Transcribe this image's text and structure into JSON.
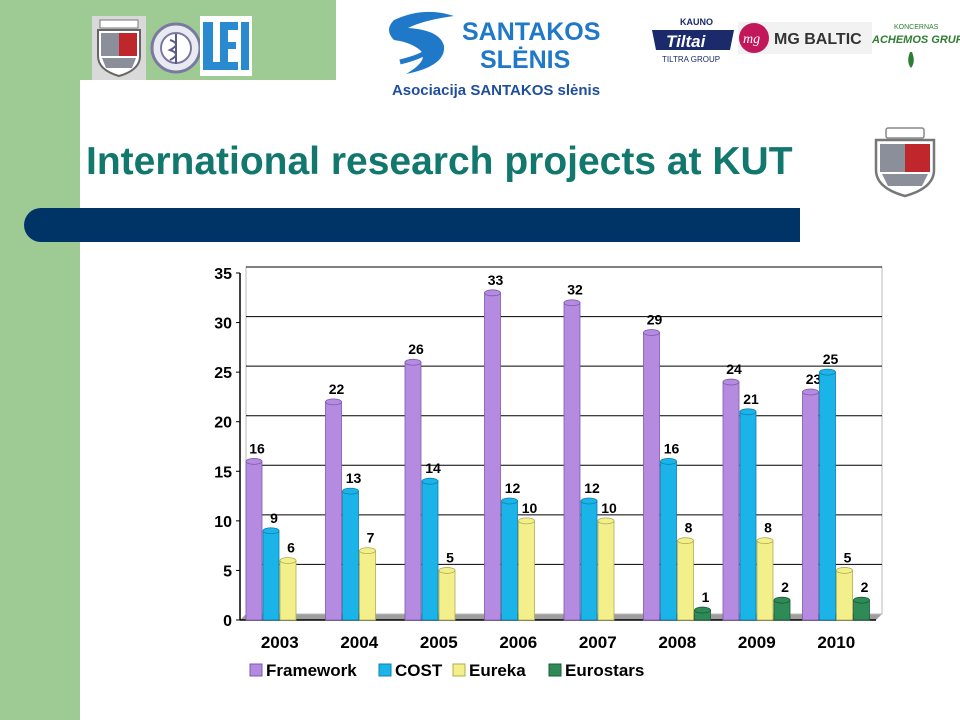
{
  "header": {
    "subtitle": "Asociacija SANTAKOS slėnis",
    "title": "International research projects at KUT",
    "logos": {
      "santakos_line1": "SANTAKOS",
      "santakos_line2": "SLĖNIS",
      "tiltai_top": "KAUNO",
      "tiltai_name": "Tiltai",
      "tiltai_sub": "TILTRA GROUP",
      "mg_mark": "mg",
      "mg_name": "MG BALTIC",
      "achemos_top": "KONCERNAS",
      "achemos_name": "ACHEMOS GRUPĖ",
      "lei": "LEI"
    }
  },
  "colors": {
    "green": "#9ecb94",
    "navy": "#003366",
    "title": "#12786e",
    "framework": "#b48be0",
    "cost": "#1ab4e8",
    "eureka": "#f3f08c",
    "eurostars": "#2e8b57"
  },
  "chart_data": {
    "type": "bar",
    "categories": [
      "2003",
      "2004",
      "2005",
      "2006",
      "2007",
      "2008",
      "2009",
      "2010"
    ],
    "series": [
      {
        "name": "Framework",
        "values": [
          16,
          22,
          26,
          33,
          32,
          29,
          24,
          23
        ]
      },
      {
        "name": "COST",
        "values": [
          9,
          13,
          14,
          12,
          12,
          16,
          21,
          25
        ]
      },
      {
        "name": "Eureka",
        "values": [
          6,
          7,
          5,
          10,
          10,
          8,
          8,
          5
        ]
      },
      {
        "name": "Eurostars",
        "values": [
          null,
          null,
          null,
          null,
          null,
          1,
          2,
          2
        ]
      }
    ],
    "ylim": [
      0,
      35
    ],
    "yticks": [
      "0",
      "5",
      "10",
      "15",
      "20",
      "25",
      "30",
      "35"
    ],
    "grid": true,
    "legend": "bottom"
  }
}
